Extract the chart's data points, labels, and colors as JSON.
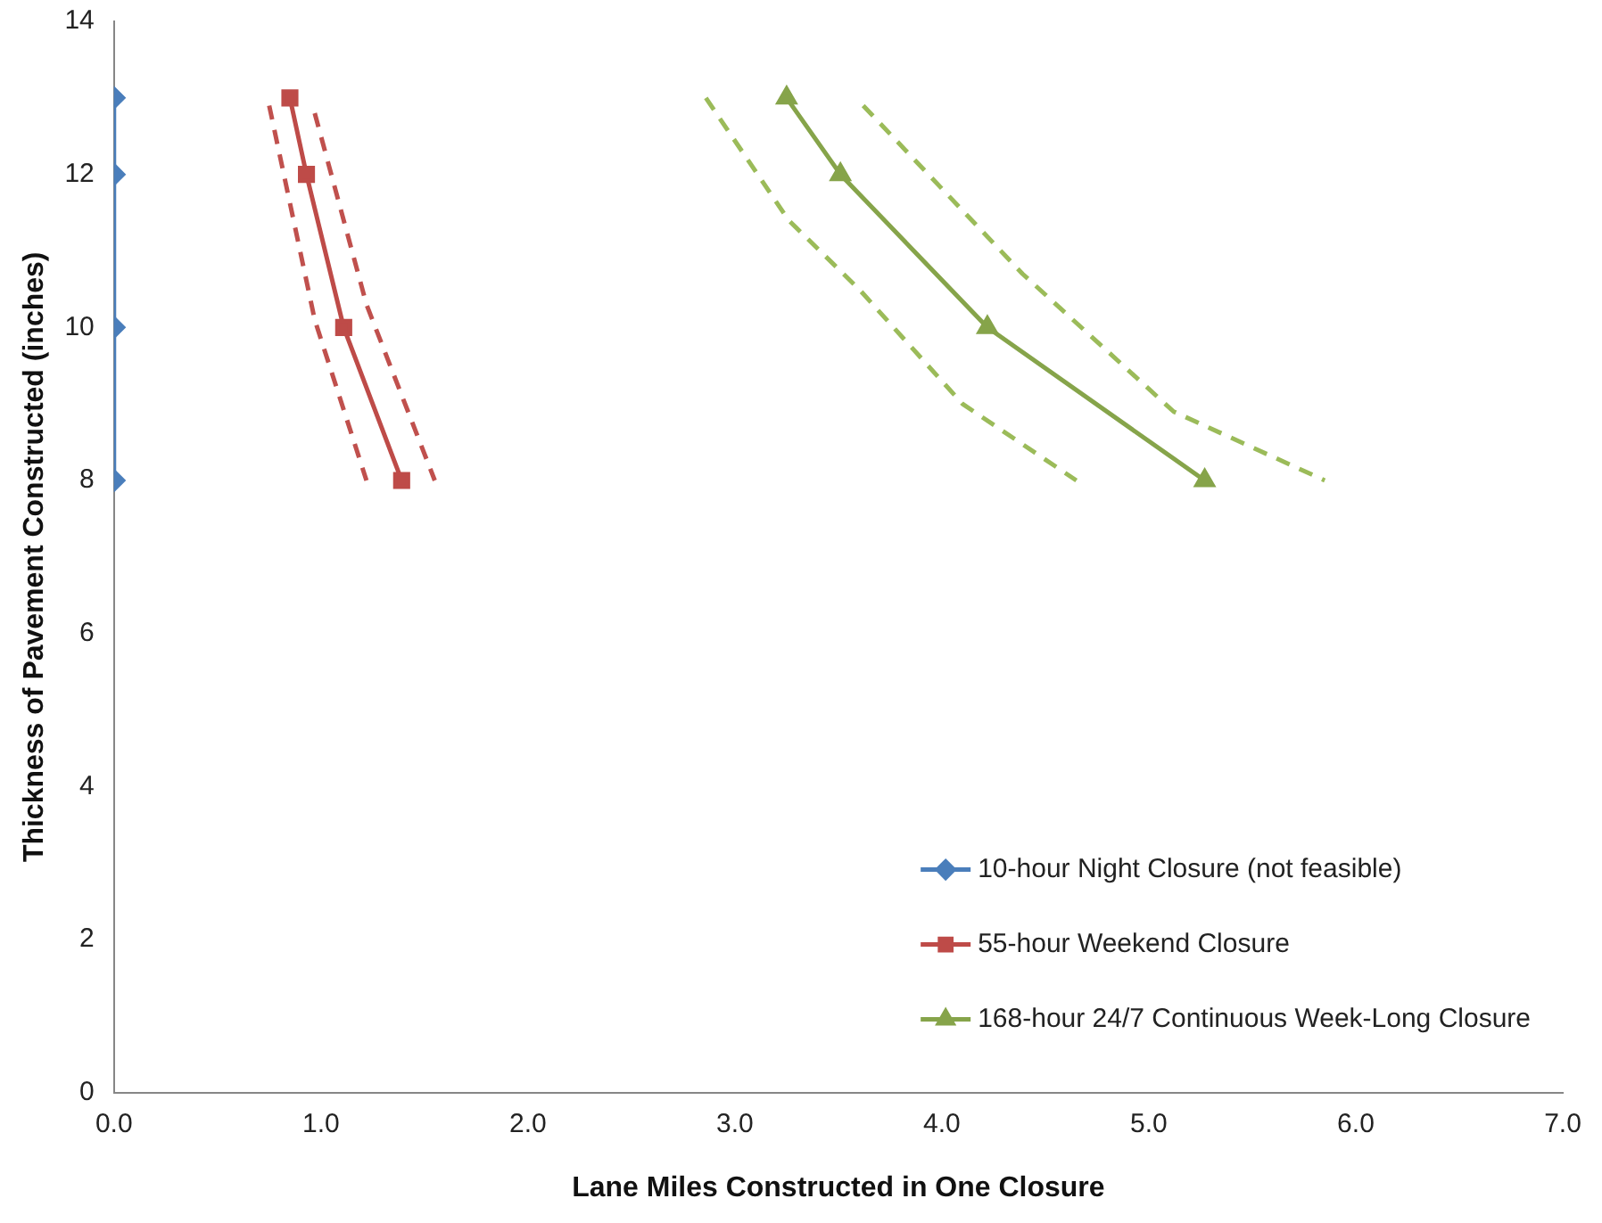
{
  "chart_data": {
    "type": "line",
    "xlabel": "Lane Miles Constructed in One Closure",
    "ylabel": "Thickness of Pavement Constructed (inches)",
    "xlim": [
      0,
      7
    ],
    "xticks": [
      {
        "value": 0,
        "label": "0.0"
      },
      {
        "value": 1,
        "label": "1.0"
      },
      {
        "value": 2,
        "label": "2.0"
      },
      {
        "value": 3,
        "label": "3.0"
      },
      {
        "value": 4,
        "label": "4.0"
      },
      {
        "value": 5,
        "label": "5.0"
      },
      {
        "value": 6,
        "label": "6.0"
      },
      {
        "value": 7,
        "label": "7.0"
      }
    ],
    "ylim": [
      0,
      14
    ],
    "yticks": [
      0,
      2,
      4,
      6,
      8,
      10,
      12,
      14
    ],
    "grid": false,
    "legend": "bottom right",
    "series": [
      {
        "name": "10-hour Night Closure (not feasible)",
        "color": "#4a7ebb",
        "marker": "diamond",
        "line_style": "solid",
        "x": [
          0,
          0,
          0,
          0
        ],
        "values": [
          13,
          12,
          10,
          8
        ]
      },
      {
        "name": "55-hour Weekend Closure",
        "color": "#be4b48",
        "marker": "square",
        "line_style": "solid",
        "x": [
          0.85,
          0.93,
          1.11,
          1.39
        ],
        "values": [
          13,
          12,
          10,
          8
        ]
      },
      {
        "name": "168-hour 24/7 Continuous Week-Long Closure",
        "color": "#86a44a",
        "marker": "triangle",
        "line_style": "solid",
        "x": [
          3.25,
          3.51,
          4.22,
          5.27
        ],
        "values": [
          13,
          12,
          10,
          8
        ]
      },
      {
        "color": "#c0504d",
        "marker": "none",
        "line_style": "dashed",
        "x": [
          0.75,
          0.97,
          1.22
        ],
        "values": [
          12.9,
          10.1,
          8
        ]
      },
      {
        "color": "#c0504d",
        "marker": "none",
        "line_style": "dashed",
        "x": [
          0.97,
          1.22,
          1.55
        ],
        "values": [
          12.8,
          10.3,
          8
        ]
      },
      {
        "color": "#9bbb59",
        "marker": "none",
        "line_style": "dashed",
        "x": [
          2.86,
          3.26,
          3.6,
          4.1,
          4.65
        ],
        "values": [
          13,
          11.4,
          10.5,
          9,
          8
        ]
      },
      {
        "color": "#9bbb59",
        "marker": "none",
        "line_style": "dashed",
        "x": [
          3.62,
          4.39,
          5.12,
          5.85
        ],
        "values": [
          12.9,
          10.7,
          8.9,
          8
        ]
      }
    ]
  }
}
